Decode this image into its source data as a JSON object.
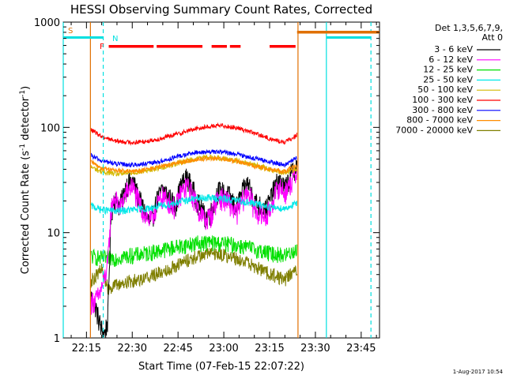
{
  "chart_data": {
    "type": "line",
    "title": "HESSI Observing Summary Count Rates, Corrected",
    "xlabel": "Start Time (07-Feb-15 22:07:22)",
    "ylabel_main": "Corrected Count Rate (s",
    "ylabel_sup1": "-1",
    "ylabel_mid": " detector",
    "ylabel_sup2": "-1",
    "ylabel_end": ")",
    "footer": "1-Aug-2017 10:54",
    "x_ticks": [
      "22:15",
      "22:30",
      "22:45",
      "23:00",
      "23:15",
      "23:30",
      "23:45"
    ],
    "x_tick_minutes": [
      15,
      30,
      45,
      60,
      75,
      90,
      105
    ],
    "xlim_minutes": [
      7.4,
      111
    ],
    "y_scale": "log",
    "y_ticks": [
      "1",
      "10",
      "100",
      "1000"
    ],
    "y_tick_values": [
      1,
      10,
      100,
      1000
    ],
    "ylim": [
      1,
      1000
    ],
    "legend": {
      "header_line1": "Det 1,3,5,6,7,9,",
      "header_line2": "Att 0",
      "position": "right"
    },
    "flag_labels": {
      "saa": "S",
      "night": "N",
      "flare": "F"
    },
    "flag_colors": {
      "saa": "#e07000",
      "night": "#00e0e0",
      "flare": "#ff0000"
    },
    "flags": {
      "saa_bars": [
        [
          84,
          111
        ]
      ],
      "night_bars": [
        [
          7.4,
          20.5
        ],
        [
          93.6,
          108.2
        ]
      ],
      "flare_bars": [
        [
          22.3,
          37
        ],
        [
          38,
          53
        ],
        [
          56,
          61
        ],
        [
          62,
          65.5
        ],
        [
          75,
          83.5
        ]
      ],
      "night_lines": [
        7.4,
        20.5,
        93.6,
        108.2
      ],
      "saa_lines": [
        16.3,
        84.3
      ]
    },
    "data_window_minutes": [
      16.3,
      84.3
    ],
    "series": [
      {
        "name": "3 - 6 keV",
        "color": "#000000",
        "x": [
          16.5,
          18,
          19,
          20,
          21,
          22,
          23,
          24,
          26,
          28,
          30,
          32,
          34,
          36,
          38,
          40,
          42,
          44,
          46,
          48,
          50,
          52,
          54,
          56,
          58,
          60,
          62,
          64,
          66,
          68,
          70,
          72,
          74,
          76,
          78,
          80,
          82,
          84
        ],
        "y": [
          2.5,
          2,
          1.5,
          1.2,
          1.1,
          1.5,
          14,
          22,
          18,
          28,
          32,
          22,
          16,
          12,
          20,
          26,
          22,
          18,
          28,
          34,
          25,
          18,
          14,
          16,
          25,
          24,
          22,
          17,
          24,
          30,
          20,
          18,
          17,
          24,
          32,
          26,
          36,
          45
        ]
      },
      {
        "name": "6 - 12 keV",
        "color": "#ff00ff",
        "x": [
          16.5,
          18,
          19,
          20,
          21,
          22,
          23,
          24,
          26,
          28,
          30,
          32,
          34,
          36,
          38,
          40,
          42,
          44,
          46,
          48,
          50,
          52,
          54,
          56,
          58,
          60,
          62,
          64,
          66,
          68,
          70,
          72,
          74,
          76,
          78,
          80,
          82,
          84
        ],
        "y": [
          2.2,
          2.3,
          2.5,
          3,
          3.8,
          5,
          16,
          22,
          17,
          24,
          28,
          20,
          15,
          13,
          18,
          22,
          20,
          17,
          24,
          28,
          22,
          16,
          13,
          15,
          22,
          21,
          19,
          15,
          20,
          25,
          17,
          15,
          14,
          20,
          28,
          24,
          30,
          38
        ]
      },
      {
        "name": "12 - 25 keV",
        "color": "#00e000",
        "x": [
          16.5,
          20,
          25,
          30,
          35,
          40,
          45,
          50,
          55,
          60,
          65,
          70,
          75,
          80,
          84
        ],
        "y": [
          6,
          5.7,
          5.8,
          6.1,
          6.4,
          6.9,
          7.4,
          7.9,
          8.1,
          7.9,
          7.6,
          7,
          6.4,
          6.1,
          7
        ]
      },
      {
        "name": "25 - 50 keV",
        "color": "#00e8e8",
        "x": [
          16.5,
          20,
          25,
          30,
          35,
          40,
          45,
          50,
          55,
          60,
          65,
          70,
          75,
          80,
          84
        ],
        "y": [
          18,
          16.5,
          16,
          16.5,
          17,
          18,
          19.5,
          21,
          21.5,
          21,
          20,
          19,
          17.5,
          17,
          19
        ]
      },
      {
        "name": "50 - 100 keV",
        "color": "#d4b800",
        "x": [
          16.5,
          20,
          25,
          30,
          35,
          40,
          45,
          50,
          55,
          60,
          65,
          70,
          75,
          80,
          84
        ],
        "y": [
          42,
          38,
          36,
          37,
          39,
          42,
          46,
          50,
          52,
          51,
          48,
          44,
          40,
          37,
          40
        ]
      },
      {
        "name": "100 - 300 keV",
        "color": "#ff0000",
        "x": [
          16.5,
          20,
          25,
          30,
          35,
          40,
          45,
          50,
          55,
          60,
          65,
          70,
          75,
          80,
          84
        ],
        "y": [
          95,
          82,
          74,
          72,
          74,
          79,
          87,
          96,
          102,
          104,
          98,
          88,
          78,
          72,
          85
        ]
      },
      {
        "name": "300 - 800 keV",
        "color": "#0000ff",
        "x": [
          16.5,
          20,
          25,
          30,
          35,
          40,
          45,
          50,
          55,
          60,
          65,
          70,
          75,
          80,
          84
        ],
        "y": [
          54,
          48,
          45,
          44,
          45,
          48,
          53,
          57,
          59,
          58,
          55,
          51,
          47,
          44,
          52
        ]
      },
      {
        "name": "800 - 7000 keV",
        "color": "#ff8c00",
        "x": [
          16.5,
          20,
          25,
          30,
          35,
          40,
          45,
          50,
          55,
          60,
          65,
          70,
          75,
          80,
          84
        ],
        "y": [
          47,
          41,
          39,
          38,
          40,
          43,
          46,
          49,
          51,
          50,
          47,
          43,
          40,
          38,
          44
        ]
      },
      {
        "name": "7000 - 20000 keV",
        "color": "#7f7f00",
        "x": [
          16.5,
          20,
          22,
          25,
          30,
          35,
          40,
          45,
          50,
          55,
          60,
          65,
          70,
          75,
          80,
          84
        ],
        "y": [
          3.5,
          4.5,
          3,
          3.2,
          3.5,
          3.8,
          4.3,
          5,
          5.8,
          6.4,
          6.2,
          5.6,
          4.8,
          4.1,
          3.6,
          4.5
        ]
      }
    ]
  }
}
